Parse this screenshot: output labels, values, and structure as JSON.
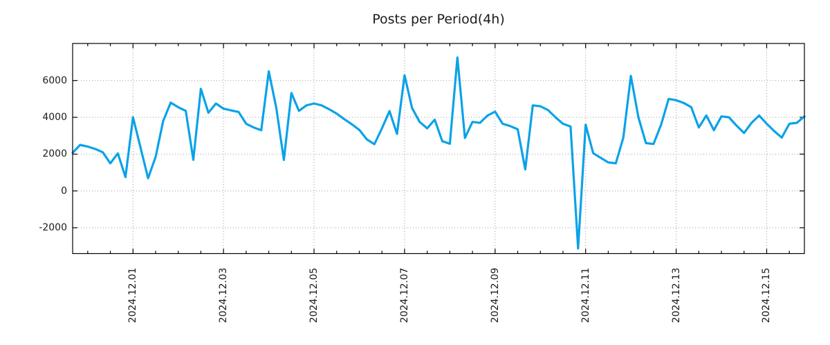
{
  "chart_data": {
    "type": "line",
    "title": "Posts per Period(4h)",
    "period": "4h",
    "interval_hours": 4,
    "line_color": "#0aa2e8",
    "grid_color": "#999999",
    "axis_color": "#000000",
    "text_color": "#1a1a1a",
    "legend": "none",
    "grid": "dotted both axes",
    "ylim": [
      -3405,
      8014
    ],
    "xlim_hours": [
      0,
      388
    ],
    "y_ticks": [
      {
        "label": "6000",
        "value": 6000
      },
      {
        "label": "4000",
        "value": 4000
      },
      {
        "label": "2000",
        "value": 2000
      },
      {
        "label": "0",
        "value": 0
      },
      {
        "label": "-2000",
        "value": -2000
      }
    ],
    "x_ticks": [
      {
        "label": "2024.12.01",
        "hour": 32
      },
      {
        "label": "2024.12.03",
        "hour": 80
      },
      {
        "label": "2024.12.05",
        "hour": 128
      },
      {
        "label": "2024.12.07",
        "hour": 176
      },
      {
        "label": "2024.12.09",
        "hour": 224
      },
      {
        "label": "2024.12.11",
        "hour": 272
      },
      {
        "label": "2024.12.13",
        "hour": 320
      },
      {
        "label": "2024.12.15",
        "hour": 368
      }
    ],
    "minor_tick_every_hours": 12,
    "minor_tick_start_hour": 8,
    "values": [
      2075,
      2500,
      2410,
      2280,
      2100,
      1500,
      2040,
      750,
      4000,
      2350,
      690,
      1850,
      3800,
      4800,
      4550,
      4350,
      1690,
      5550,
      4250,
      4750,
      4475,
      4375,
      4290,
      3650,
      3450,
      3300,
      6500,
      4500,
      1685,
      5320,
      4350,
      4650,
      4750,
      4650,
      4440,
      4200,
      3900,
      3625,
      3315,
      2800,
      2540,
      3400,
      4340,
      3100,
      6280,
      4500,
      3750,
      3400,
      3875,
      2700,
      2565,
      7250,
      2875,
      3750,
      3700,
      4100,
      4310,
      3650,
      3525,
      3350,
      1165,
      4650,
      4600,
      4400,
      4000,
      3650,
      3500,
      -3125,
      3600,
      2050,
      1800,
      1550,
      1500,
      2900,
      6250,
      4000,
      2600,
      2550,
      3600,
      5000,
      4930,
      4780,
      4550,
      3450,
      4100,
      3300,
      4050,
      4000,
      3550,
      3150,
      3700,
      4100,
      3650,
      3250,
      2900,
      3650,
      3700,
      4050
    ]
  }
}
